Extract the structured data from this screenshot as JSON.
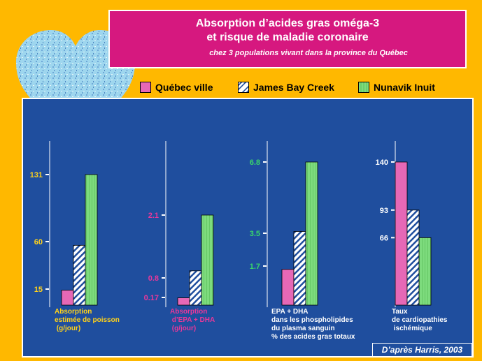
{
  "title": {
    "line1": "Absorption d’acides gras oméga-3",
    "line2": "et risque de maladie coronaire",
    "subtitle": "chez 3 populations vivant dans la province du Québec"
  },
  "legend": [
    {
      "label": "Québec ville",
      "color": "#E668B6",
      "pattern": "solid"
    },
    {
      "label": "James Bay Creek",
      "color": "#FFFFFF",
      "pattern": "hatch"
    },
    {
      "label": "Nunavik Inuit",
      "color": "#7DDB7D",
      "pattern": "stripe"
    }
  ],
  "credit": "D’après Harris, 2003",
  "colors": {
    "background": "#FFB800",
    "panel": "#1F4E9E",
    "title_box": "#D6187F"
  },
  "chart_data": [
    {
      "type": "bar",
      "label_lines": [
        "Absorption",
        "estimée  de poisson",
        " (g/jour)"
      ],
      "label_color": "#FFD21A",
      "tick_color": "#FFD21A",
      "series": [
        {
          "name": "Québec ville",
          "value": 15
        },
        {
          "name": "James Bay Creek",
          "value": 60
        },
        {
          "name": "Nunavik Inuit",
          "value": 131
        }
      ],
      "ticks": [
        15,
        60,
        131
      ]
    },
    {
      "type": "bar",
      "label_lines": [
        "Absorption",
        " d’EPA  + DHA",
        " (g/jour)"
      ],
      "label_color": "#E8389A",
      "tick_color": "#E8389A",
      "series": [
        {
          "name": "Québec ville",
          "value": 0.17
        },
        {
          "name": "James Bay Creek",
          "value": 0.8
        },
        {
          "name": "Nunavik Inuit",
          "value": 2.1
        }
      ],
      "ticks": [
        0.17,
        0.8,
        2.1
      ]
    },
    {
      "type": "bar",
      "label_lines": [
        "EPA + DHA",
        "dans  les  phospholipides",
        "du  plasma  sanguin",
        "%  des  acides  gras totaux"
      ],
      "label_color": "#FFFFFF",
      "tick_color": "#39D66B",
      "series": [
        {
          "name": "Québec ville",
          "value": 1.7
        },
        {
          "name": "James Bay Creek",
          "value": 3.5
        },
        {
          "name": "Nunavik Inuit",
          "value": 6.8
        }
      ],
      "ticks": [
        1.7,
        3.5,
        6.8
      ]
    },
    {
      "type": "bar",
      "label_lines": [
        "Taux",
        "de cardiopathies",
        " ischémique"
      ],
      "label_color": "#FFFFFF",
      "tick_color": "#FFFFFF",
      "series": [
        {
          "name": "Québec ville",
          "value": 140
        },
        {
          "name": "James Bay Creek",
          "value": 93
        },
        {
          "name": "Nunavik Inuit",
          "value": 66
        }
      ],
      "ticks": [
        140,
        93,
        66
      ]
    }
  ]
}
